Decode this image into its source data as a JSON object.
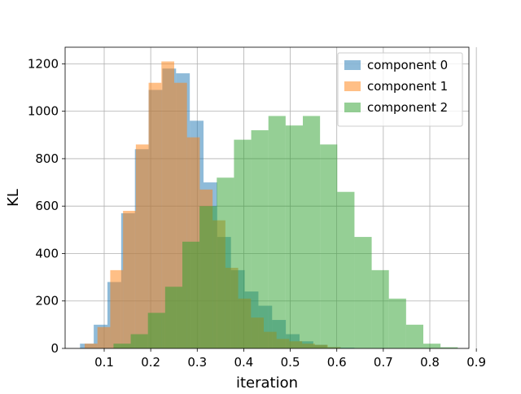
{
  "chart_data": {
    "type": "bar",
    "xlabel": "iteration",
    "ylabel": "KL",
    "xlim": [
      0.016,
      0.884
    ],
    "ylim": [
      0,
      1270
    ],
    "x_ticks": [
      0.1,
      0.2,
      0.3,
      0.4,
      0.5,
      0.6,
      0.7,
      0.8,
      0.9
    ],
    "x_tick_labels": [
      "0.1",
      "0.2",
      "0.3",
      "0.4",
      "0.5",
      "0.6",
      "0.7",
      "0.8",
      "0.9"
    ],
    "y_ticks": [
      0,
      200,
      400,
      600,
      800,
      1000,
      1200
    ],
    "y_tick_labels": [
      "0",
      "200",
      "400",
      "600",
      "800",
      "1000",
      "1200"
    ],
    "grid": true,
    "legend_position": "top-right",
    "series": [
      {
        "name": "component 0",
        "color": "#1f77b4",
        "bin_edges": [
          0.048,
          0.0775,
          0.107,
          0.1365,
          0.166,
          0.1955,
          0.225,
          0.2545,
          0.284,
          0.3135,
          0.343,
          0.3725,
          0.402,
          0.4315,
          0.461,
          0.4905,
          0.52,
          0.5495,
          0.579,
          0.6085,
          0.638
        ],
        "counts": [
          20,
          100,
          280,
          570,
          840,
          1090,
          1180,
          1160,
          960,
          700,
          470,
          330,
          240,
          180,
          120,
          60,
          30,
          15,
          5,
          3
        ]
      },
      {
        "name": "component 1",
        "color": "#ff7f0e",
        "bin_edges": [
          0.058,
          0.0855,
          0.113,
          0.1405,
          0.168,
          0.1955,
          0.223,
          0.2505,
          0.278,
          0.3055,
          0.333,
          0.3605,
          0.388,
          0.4155,
          0.443,
          0.4705,
          0.498,
          0.5255,
          0.553,
          0.5805,
          0.608
        ],
        "counts": [
          20,
          90,
          330,
          580,
          860,
          1120,
          1210,
          1120,
          890,
          670,
          540,
          340,
          210,
          130,
          70,
          40,
          30,
          20,
          15,
          5
        ]
      },
      {
        "name": "component 2",
        "color": "#2ca02c",
        "bin_edges": [
          0.12,
          0.157,
          0.194,
          0.231,
          0.268,
          0.305,
          0.342,
          0.379,
          0.416,
          0.453,
          0.49,
          0.527,
          0.564,
          0.601,
          0.638,
          0.675,
          0.712,
          0.749,
          0.786,
          0.823,
          0.86
        ],
        "counts": [
          20,
          60,
          150,
          260,
          450,
          600,
          720,
          880,
          920,
          980,
          940,
          980,
          860,
          660,
          470,
          330,
          210,
          100,
          20,
          5
        ]
      }
    ]
  }
}
